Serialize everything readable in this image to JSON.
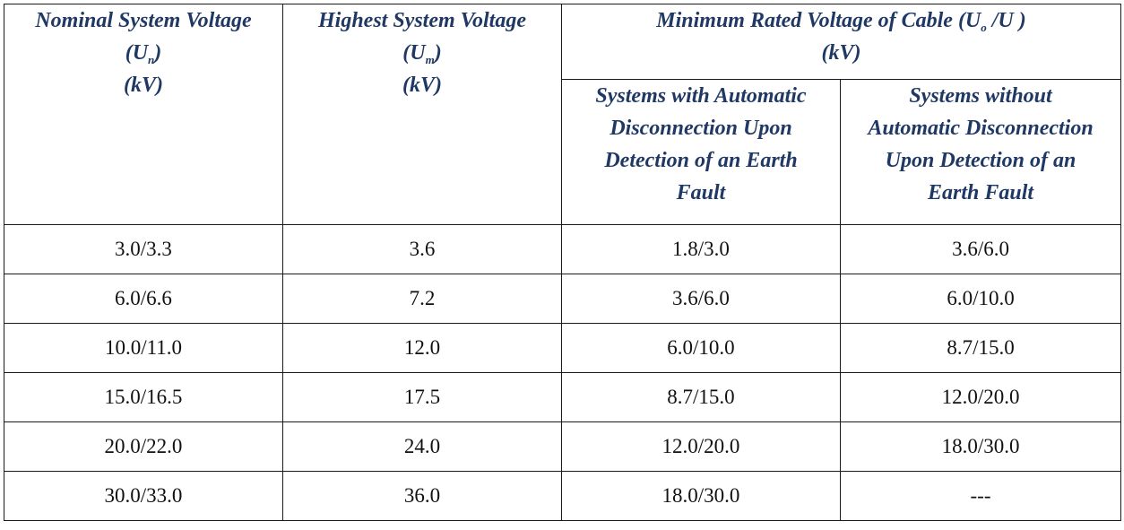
{
  "header": {
    "col1": {
      "line1": "Nominal System Voltage",
      "sym_open": "(U",
      "sym_sub": "n",
      "sym_close": ")",
      "unit": "(kV)"
    },
    "col2": {
      "line1": "Highest System Voltage",
      "sym_open": "(U",
      "sym_sub": "m",
      "sym_close": ")",
      "unit": "(kV)"
    },
    "group": {
      "line1_a": "Minimum Rated Voltage of Cable (U",
      "line1_sub": "o",
      "line1_b": " /U )",
      "unit": "(kV)"
    },
    "sub1": [
      "Systems with Automatic",
      "Disconnection Upon",
      "Detection of an Earth",
      "Fault"
    ],
    "sub2": [
      "Systems without",
      "Automatic Disconnection",
      "Upon Detection of an",
      "Earth Fault"
    ]
  },
  "rows": [
    [
      "3.0/3.3",
      "3.6",
      "1.8/3.0",
      "3.6/6.0"
    ],
    [
      "6.0/6.6",
      "7.2",
      "3.6/6.0",
      "6.0/10.0"
    ],
    [
      "10.0/11.0",
      "12.0",
      "6.0/10.0",
      "8.7/15.0"
    ],
    [
      "15.0/16.5",
      "17.5",
      "8.7/15.0",
      "12.0/20.0"
    ],
    [
      "20.0/22.0",
      "24.0",
      "12.0/20.0",
      "18.0/30.0"
    ],
    [
      "30.0/33.0",
      "36.0",
      "18.0/30.0",
      "---"
    ]
  ],
  "colors": {
    "header_text": "#1f3864",
    "body_text": "#111111",
    "border": "#1a1a1a"
  }
}
